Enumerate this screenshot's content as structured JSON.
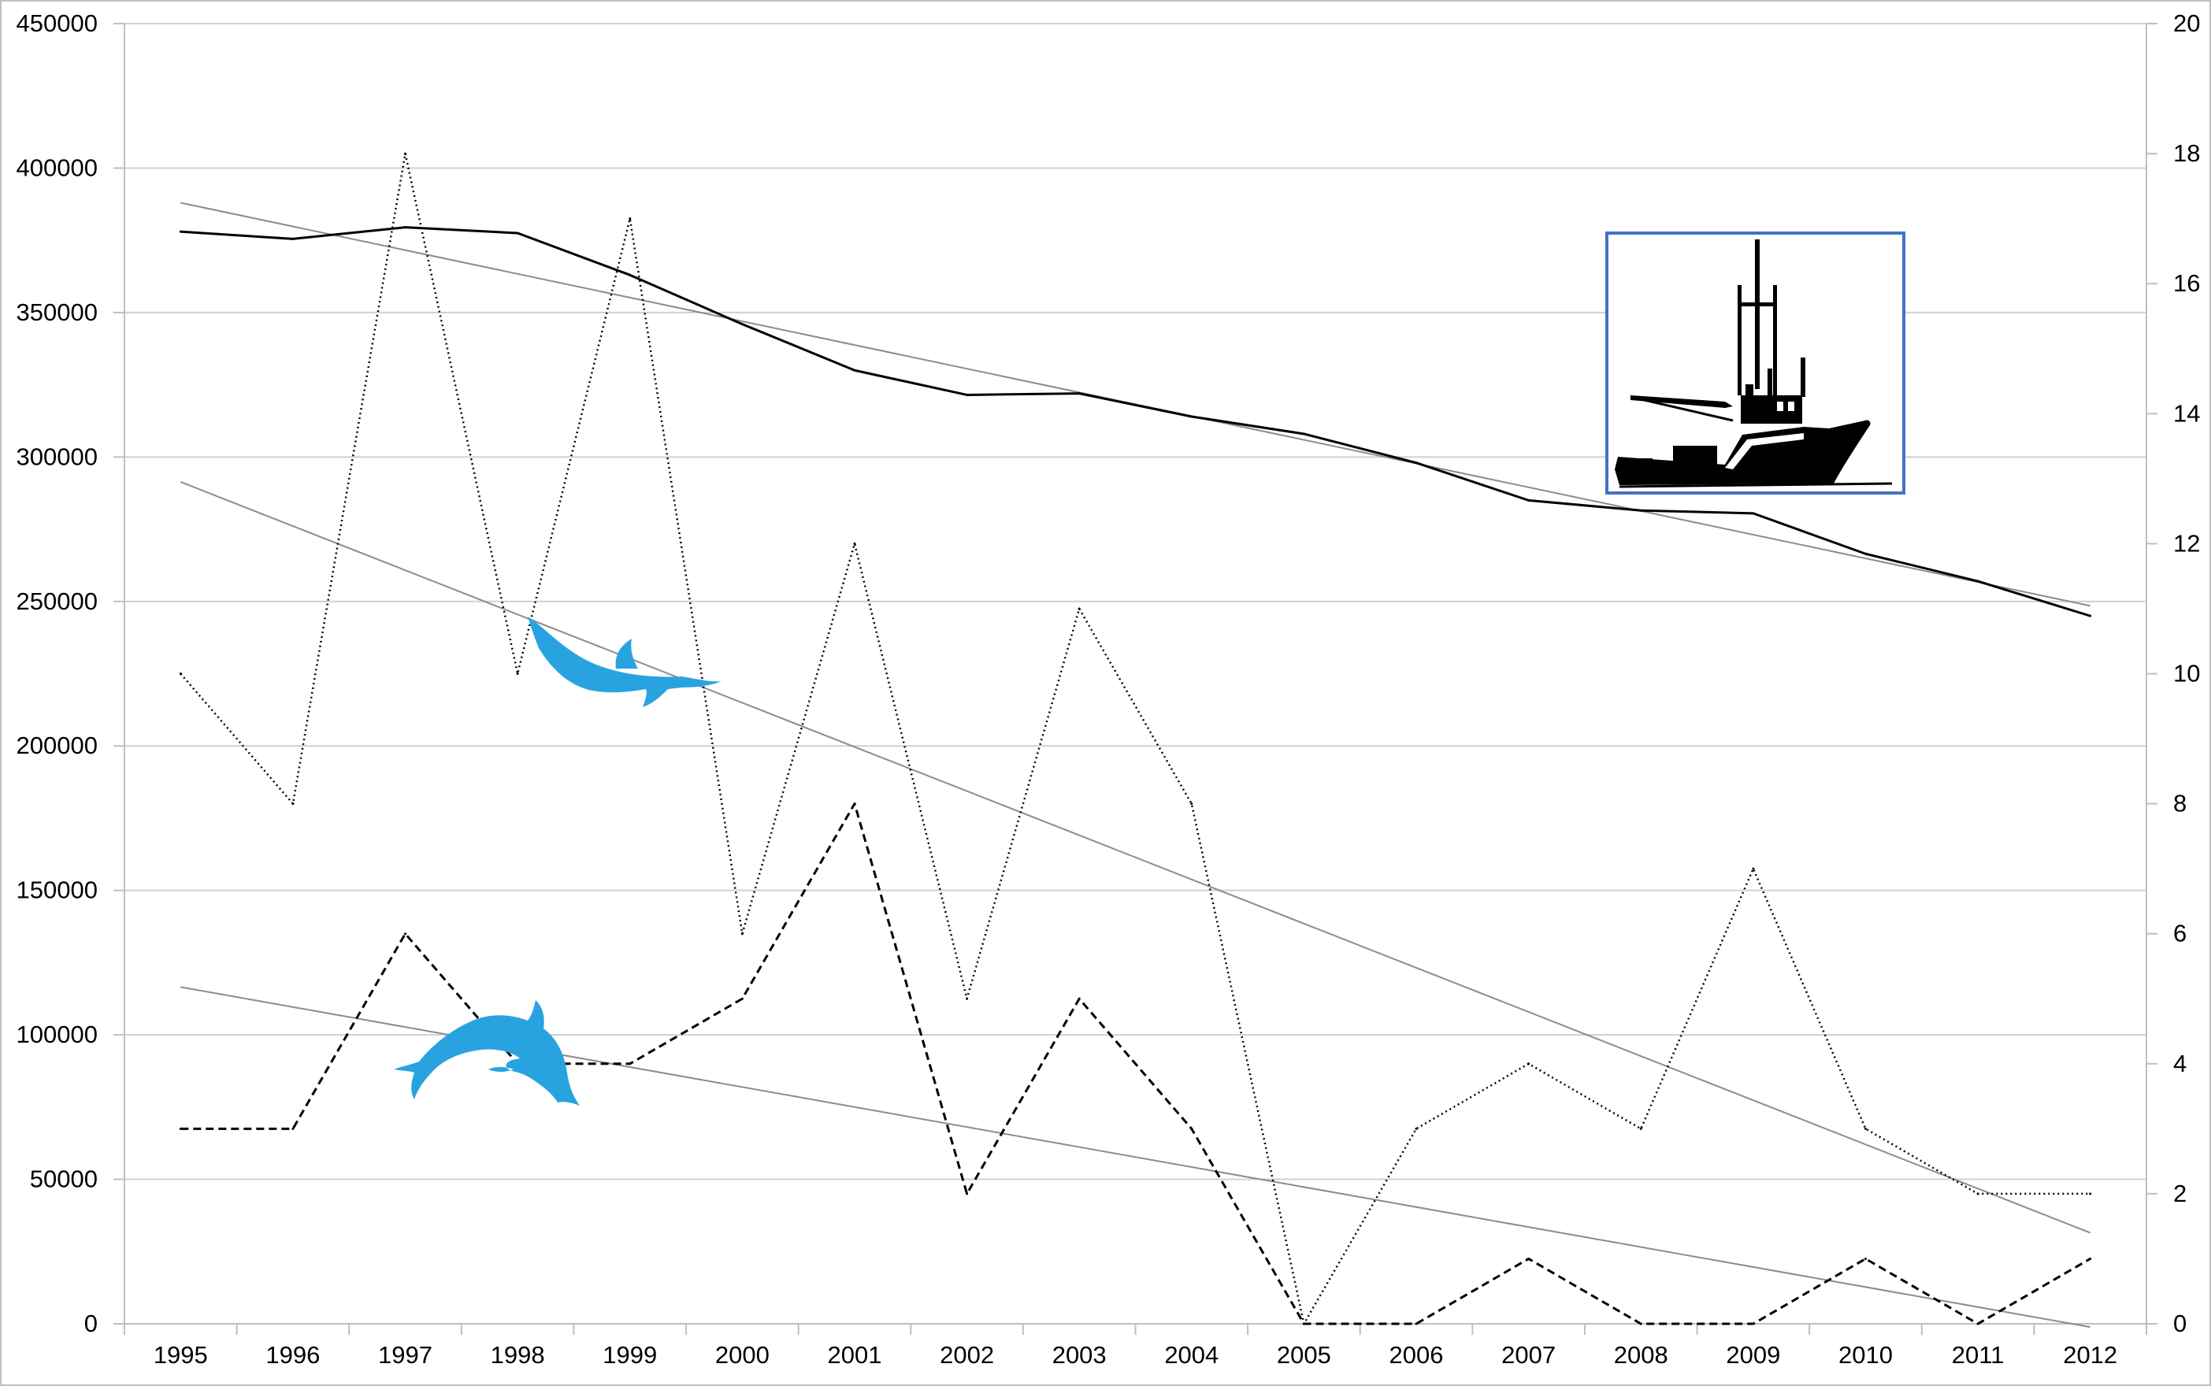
{
  "chart_data": {
    "type": "line",
    "title": "",
    "xlabel": "",
    "ylabel_left": "",
    "ylabel_right": "",
    "categories": [
      "1995",
      "1996",
      "1997",
      "1998",
      "1999",
      "2000",
      "2001",
      "2002",
      "2003",
      "2004",
      "2005",
      "2006",
      "2007",
      "2008",
      "2009",
      "2010",
      "2011",
      "2012"
    ],
    "y_left": {
      "range": [
        0,
        450000
      ],
      "ticks": [
        0,
        50000,
        100000,
        150000,
        200000,
        250000,
        300000,
        350000,
        400000,
        450000
      ]
    },
    "y_right": {
      "range": [
        0,
        20
      ],
      "ticks": [
        0,
        2,
        4,
        6,
        8,
        10,
        12,
        14,
        16,
        18,
        20
      ]
    },
    "grid": true,
    "legend": "none",
    "series": [
      {
        "axis": "left",
        "style": "solid",
        "color": "#000000",
        "values": [
          378000,
          375500,
          379500,
          377500,
          363000,
          346000,
          330000,
          321500,
          322000,
          314000,
          308000,
          298000,
          285000,
          281500,
          280500,
          266500,
          257000,
          245000
        ]
      },
      {
        "axis": "right",
        "style": "dotted",
        "color": "#000000",
        "values": [
          10,
          8,
          18,
          10,
          17,
          6,
          12,
          5,
          11,
          8,
          0,
          3,
          4,
          3,
          7,
          3,
          2,
          2
        ]
      },
      {
        "axis": "right",
        "style": "dashed",
        "color": "#000000",
        "values": [
          3,
          3,
          6,
          4,
          4,
          5,
          8,
          2,
          5,
          3,
          0,
          0,
          1,
          0,
          0,
          1,
          0,
          1
        ]
      }
    ],
    "trendlines": [
      {
        "axis": "left",
        "start": [
          1995,
          388000
        ],
        "end": [
          2012,
          248500
        ]
      },
      {
        "axis": "right",
        "start": [
          1995,
          12.95
        ],
        "end": [
          2012,
          1.4
        ]
      },
      {
        "axis": "right",
        "start": [
          1995,
          5.18
        ],
        "end": [
          2012,
          -0.05
        ]
      }
    ],
    "icons": [
      "dolphin-swimming-icon",
      "dolphin-leaping-icon",
      "fishing-boat-icon"
    ],
    "icon_color": "#29A3E0",
    "frame_color": "#4472C4"
  }
}
